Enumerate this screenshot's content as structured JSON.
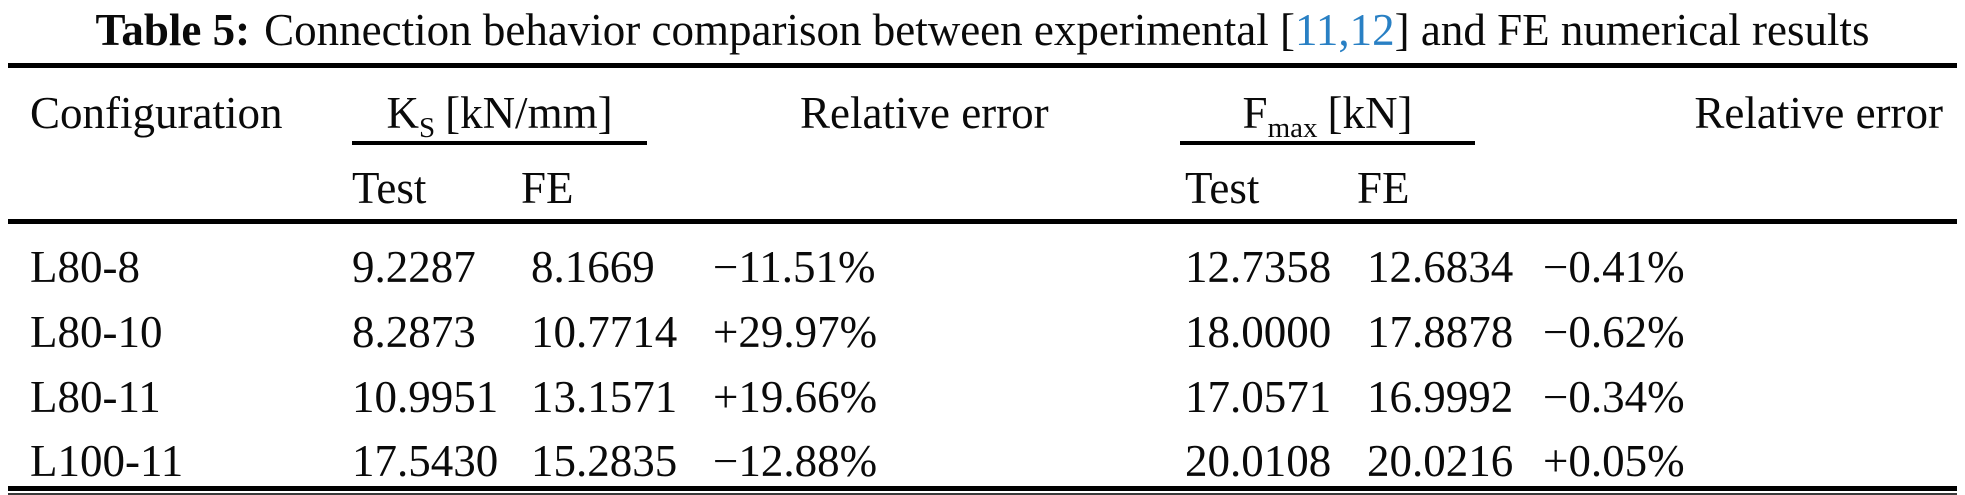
{
  "title": {
    "label": "Table 5:",
    "seg1": "Connection behavior comparison between experimental [",
    "citation": "11,12",
    "seg2": "] and FE numerical results"
  },
  "colors": {
    "citation_blue": "#2980c4",
    "text": "#0a0a0a",
    "rule": "#000000"
  },
  "table": {
    "headers": {
      "configuration": "Configuration",
      "ks": {
        "symbol": "K",
        "subscript": "S",
        "unit": "[kN/mm]"
      },
      "relative_error_ks": "Relative error",
      "fmax": {
        "symbol": "F",
        "subscript": "max",
        "unit": "[kN]"
      },
      "relative_error_fmax": "Relative error",
      "ks_test": "Test",
      "ks_fe": "FE",
      "fmax_test": "Test",
      "fmax_fe": "FE"
    },
    "rows": [
      {
        "config": "L80-8",
        "ks_test": "9.2287",
        "ks_fe": "8.1669",
        "ks_err": "−11.51%",
        "fmax_test": "12.7358",
        "fmax_fe": "12.6834",
        "fmax_err": "−0.41%"
      },
      {
        "config": "L80-10",
        "ks_test": "8.2873",
        "ks_fe": "10.7714",
        "ks_err": "+29.97%",
        "fmax_test": "18.0000",
        "fmax_fe": "17.8878",
        "fmax_err": "−0.62%"
      },
      {
        "config": "L80-11",
        "ks_test": "10.9951",
        "ks_fe": "13.1571",
        "ks_err": "+19.66%",
        "fmax_test": "17.0571",
        "fmax_fe": "16.9992",
        "fmax_err": "−0.34%"
      },
      {
        "config": "L100-11",
        "ks_test": "17.5430",
        "ks_fe": "15.2835",
        "ks_err": "−12.88%",
        "fmax_test": "20.0108",
        "fmax_fe": "20.0216",
        "fmax_err": "+0.05%"
      }
    ]
  }
}
